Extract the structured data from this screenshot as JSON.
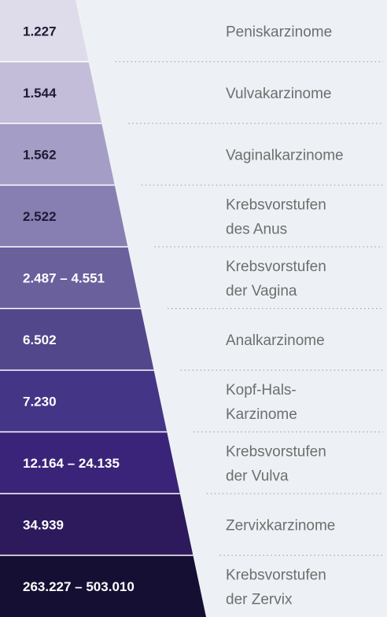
{
  "chart_data": {
    "type": "funnel",
    "title": "",
    "rows": [
      {
        "value": "1.227",
        "label": [
          "Peniskarzinome"
        ],
        "color": "#dedbea",
        "text_color": "#1e1b33"
      },
      {
        "value": "1.544",
        "label": [
          "Vulvakarzinome"
        ],
        "color": "#c3bdd9",
        "text_color": "#1e1b33"
      },
      {
        "value": "1.562",
        "label": [
          "Vaginalkarzinome"
        ],
        "color": "#a49dc6",
        "text_color": "#1e1b33"
      },
      {
        "value": "2.522",
        "label": [
          "Krebsvorstufen",
          "des Anus"
        ],
        "color": "#877fb2",
        "text_color": "#1e1b33"
      },
      {
        "value": "2.487 – 4.551",
        "label": [
          "Krebsvorstufen",
          "der Vagina"
        ],
        "color": "#6a609c",
        "text_color": "#ffffff"
      },
      {
        "value": "6.502",
        "label": [
          "Analkarzinome"
        ],
        "color": "#52478a",
        "text_color": "#ffffff"
      },
      {
        "value": "7.230",
        "label": [
          "Kopf-Hals-",
          "Karzinome"
        ],
        "color": "#443587",
        "text_color": "#ffffff"
      },
      {
        "value": "12.164 – 24.135",
        "label": [
          "Krebsvorstufen",
          "der Vulva"
        ],
        "color": "#3a2479",
        "text_color": "#ffffff"
      },
      {
        "value": "34.939",
        "label": [
          "Zervixkarzinome"
        ],
        "color": "#2c1a5c",
        "text_color": "#ffffff"
      },
      {
        "value": "263.227 – 503.010",
        "label": [
          "Krebsvorstufen",
          "der Zervix"
        ],
        "color": "#150f33",
        "text_color": "#ffffff"
      }
    ]
  }
}
